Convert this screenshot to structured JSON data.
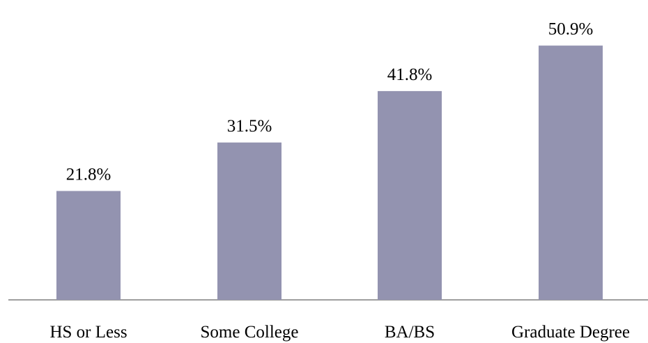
{
  "chart_data": {
    "type": "bar",
    "title": "",
    "xlabel": "",
    "ylabel": "",
    "categories": [
      "HS or Less",
      "Some College",
      "BA/BS",
      "Graduate Degree"
    ],
    "values": [
      21.8,
      31.5,
      41.8,
      50.9
    ],
    "value_labels": [
      "21.8%",
      "31.5%",
      "41.8%",
      "50.9%"
    ],
    "ylim": [
      0,
      55
    ],
    "grid": false,
    "legend": "none",
    "colors": {
      "bar": "#9393b0",
      "axis": "#7f7f7f",
      "text": "#000000"
    }
  }
}
